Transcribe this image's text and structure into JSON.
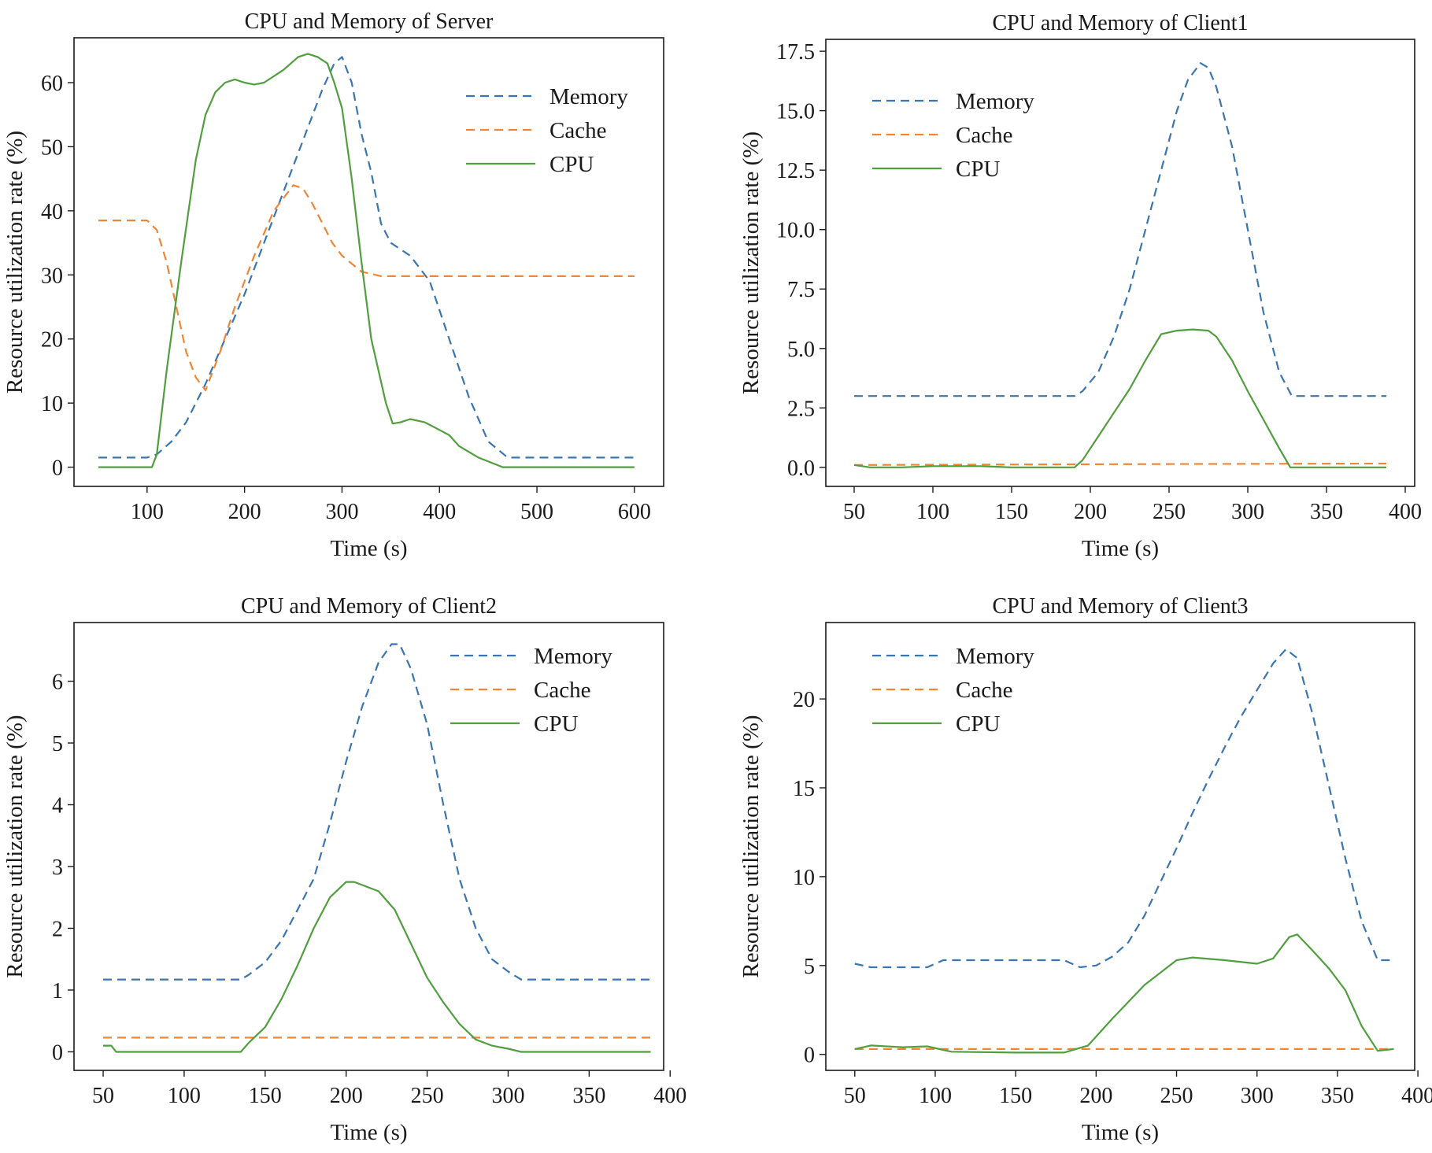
{
  "colors": {
    "memory": "#3b75af",
    "cache": "#ef8636",
    "cpu": "#519e3e",
    "axis": "#1a1a1a"
  },
  "chart_data": [
    {
      "type": "line",
      "title": "CPU and Memory of Server",
      "xlabel": "Time (s)",
      "ylabel": "Resource utilization rate (%)",
      "xlim": [
        25,
        630
      ],
      "ylim": [
        -3,
        67
      ],
      "xticks": [
        100,
        200,
        300,
        400,
        500,
        600
      ],
      "yticks": [
        0,
        10,
        20,
        30,
        40,
        50,
        60
      ],
      "legend_position": "top-right",
      "series": [
        {
          "name": "Memory",
          "style": "dashed",
          "color": "#3b75af",
          "x": [
            50,
            100,
            110,
            125,
            140,
            160,
            180,
            200,
            220,
            240,
            260,
            280,
            292,
            300,
            310,
            320,
            330,
            340,
            350,
            370,
            390,
            410,
            430,
            450,
            470,
            500,
            540,
            600
          ],
          "y": [
            1.5,
            1.5,
            2,
            4,
            7,
            13,
            20,
            27,
            35,
            43,
            51,
            59,
            63,
            64,
            60,
            52,
            46,
            38,
            35,
            33,
            29,
            20,
            11,
            4,
            1.5,
            1.5,
            1.5,
            1.5
          ]
        },
        {
          "name": "Cache",
          "style": "dashed",
          "color": "#ef8636",
          "x": [
            50,
            100,
            110,
            120,
            130,
            140,
            150,
            160,
            175,
            190,
            210,
            230,
            250,
            260,
            270,
            280,
            290,
            300,
            320,
            340,
            400,
            500,
            600
          ],
          "y": [
            38.5,
            38.5,
            37,
            32,
            25,
            18,
            14,
            12,
            18,
            25,
            33,
            40,
            44,
            43.5,
            41,
            38,
            35,
            33,
            30.5,
            29.8,
            29.8,
            29.8,
            29.8
          ]
        },
        {
          "name": "CPU",
          "style": "solid",
          "color": "#519e3e",
          "x": [
            50,
            105,
            110,
            120,
            135,
            150,
            160,
            170,
            180,
            190,
            200,
            210,
            220,
            240,
            255,
            265,
            275,
            285,
            292,
            300,
            310,
            320,
            330,
            345,
            352,
            360,
            370,
            385,
            400,
            410,
            420,
            440,
            465,
            500,
            550,
            600
          ],
          "y": [
            0,
            0,
            2,
            15,
            32,
            48,
            55,
            58.5,
            60,
            60.5,
            60,
            59.7,
            60,
            62,
            64,
            64.5,
            64,
            63,
            60,
            56,
            45,
            32,
            20,
            10,
            6.8,
            7,
            7.5,
            7,
            5.8,
            5,
            3.3,
            1.5,
            0,
            0,
            0,
            0
          ]
        }
      ]
    },
    {
      "type": "line",
      "title": "CPU and Memory of Client1",
      "xlabel": "Time (s)",
      "ylabel": "Resource utilization rate (%)",
      "xlim": [
        32,
        406
      ],
      "ylim": [
        -0.8,
        18
      ],
      "xticks": [
        50,
        100,
        150,
        200,
        250,
        300,
        350,
        400
      ],
      "yticks": [
        0.0,
        2.5,
        5.0,
        7.5,
        10.0,
        12.5,
        15.0,
        17.5
      ],
      "ytick_labels": [
        "0.0",
        "2.5",
        "5.0",
        "7.5",
        "10.0",
        "12.5",
        "15.0",
        "17.5"
      ],
      "legend_position": "top-left",
      "series": [
        {
          "name": "Memory",
          "style": "dashed",
          "color": "#3b75af",
          "x": [
            50,
            100,
            150,
            190,
            195,
            205,
            215,
            225,
            235,
            245,
            255,
            262,
            270,
            275,
            280,
            290,
            300,
            310,
            320,
            328,
            340,
            388
          ],
          "y": [
            3,
            3,
            3,
            3,
            3.2,
            4,
            5.5,
            7.5,
            10,
            12.5,
            15,
            16.3,
            17,
            16.8,
            16,
            13.5,
            10,
            6.5,
            4,
            3,
            3,
            3
          ]
        },
        {
          "name": "Cache",
          "style": "dashed",
          "color": "#ef8636",
          "x": [
            50,
            150,
            250,
            388
          ],
          "y": [
            0.1,
            0.12,
            0.14,
            0.16
          ]
        },
        {
          "name": "CPU",
          "style": "solid",
          "color": "#519e3e",
          "x": [
            50,
            60,
            80,
            100,
            130,
            150,
            170,
            190,
            195,
            205,
            215,
            225,
            235,
            245,
            255,
            265,
            275,
            280,
            290,
            300,
            310,
            320,
            327,
            340,
            388
          ],
          "y": [
            0.1,
            0.0,
            0.0,
            0.05,
            0.05,
            0.0,
            0.0,
            0.0,
            0.3,
            1.3,
            2.3,
            3.3,
            4.5,
            5.6,
            5.75,
            5.8,
            5.75,
            5.5,
            4.5,
            3.2,
            2,
            0.8,
            0,
            0,
            0
          ]
        }
      ]
    },
    {
      "type": "line",
      "title": "CPU and Memory of Client2",
      "xlabel": "Time (s)",
      "ylabel": "Resource utilization rate (%)",
      "xlim": [
        32,
        396
      ],
      "ylim": [
        -0.3,
        6.95
      ],
      "xticks": [
        50,
        100,
        150,
        200,
        250,
        300,
        350,
        400
      ],
      "yticks": [
        0,
        1,
        2,
        3,
        4,
        5,
        6
      ],
      "legend_position": "top-right",
      "series": [
        {
          "name": "Memory",
          "style": "dashed",
          "color": "#3b75af",
          "x": [
            50,
            100,
            135,
            140,
            150,
            160,
            170,
            180,
            190,
            200,
            210,
            220,
            228,
            233,
            240,
            250,
            260,
            270,
            280,
            290,
            300,
            308,
            330,
            388
          ],
          "y": [
            1.17,
            1.17,
            1.17,
            1.25,
            1.45,
            1.8,
            2.3,
            2.8,
            3.7,
            4.7,
            5.6,
            6.3,
            6.6,
            6.6,
            6.2,
            5.3,
            4,
            2.8,
            2,
            1.5,
            1.3,
            1.17,
            1.17,
            1.17
          ]
        },
        {
          "name": "Cache",
          "style": "dashed",
          "color": "#ef8636",
          "x": [
            50,
            388
          ],
          "y": [
            0.23,
            0.23
          ]
        },
        {
          "name": "CPU",
          "style": "solid",
          "color": "#519e3e",
          "x": [
            50,
            55,
            58,
            100,
            135,
            140,
            150,
            160,
            170,
            180,
            190,
            200,
            205,
            215,
            220,
            230,
            240,
            250,
            260,
            270,
            280,
            290,
            300,
            308,
            340,
            388
          ],
          "y": [
            0.1,
            0.1,
            0.0,
            0.0,
            0.0,
            0.15,
            0.4,
            0.85,
            1.4,
            2,
            2.5,
            2.75,
            2.75,
            2.65,
            2.6,
            2.3,
            1.75,
            1.2,
            0.8,
            0.45,
            0.2,
            0.1,
            0.05,
            0.0,
            0.0,
            0.0
          ]
        }
      ]
    },
    {
      "type": "line",
      "title": "CPU and Memory of Client3",
      "xlabel": "Time (s)",
      "ylabel": "Resource utilization rate (%)",
      "xlim": [
        32,
        398
      ],
      "ylim": [
        -0.9,
        24.3
      ],
      "xticks": [
        50,
        100,
        150,
        200,
        250,
        300,
        350,
        400
      ],
      "yticks": [
        0,
        5,
        10,
        15,
        20
      ],
      "legend_position": "top-left",
      "series": [
        {
          "name": "Memory",
          "style": "dashed",
          "color": "#3b75af",
          "x": [
            50,
            60,
            95,
            105,
            150,
            180,
            190,
            200,
            210,
            220,
            230,
            240,
            250,
            260,
            270,
            280,
            290,
            300,
            310,
            318,
            325,
            335,
            345,
            355,
            365,
            375,
            385
          ],
          "y": [
            5.1,
            4.9,
            4.9,
            5.3,
            5.3,
            5.3,
            4.9,
            5,
            5.5,
            6.3,
            7.8,
            9.7,
            11.6,
            13.6,
            15.5,
            17.3,
            19,
            20.5,
            22,
            22.8,
            22.3,
            19,
            15,
            11,
            7.5,
            5.3,
            5.3
          ]
        },
        {
          "name": "Cache",
          "style": "dashed",
          "color": "#ef8636",
          "x": [
            50,
            385
          ],
          "y": [
            0.3,
            0.3
          ]
        },
        {
          "name": "CPU",
          "style": "solid",
          "color": "#519e3e",
          "x": [
            50,
            60,
            80,
            95,
            110,
            150,
            180,
            195,
            210,
            230,
            250,
            260,
            280,
            300,
            310,
            320,
            325,
            335,
            345,
            355,
            365,
            375,
            385
          ],
          "y": [
            0.3,
            0.5,
            0.4,
            0.45,
            0.15,
            0.1,
            0.1,
            0.5,
            2,
            3.9,
            5.3,
            5.45,
            5.3,
            5.1,
            5.4,
            6.6,
            6.75,
            5.8,
            4.8,
            3.6,
            1.6,
            0.2,
            0.3
          ]
        }
      ]
    }
  ]
}
